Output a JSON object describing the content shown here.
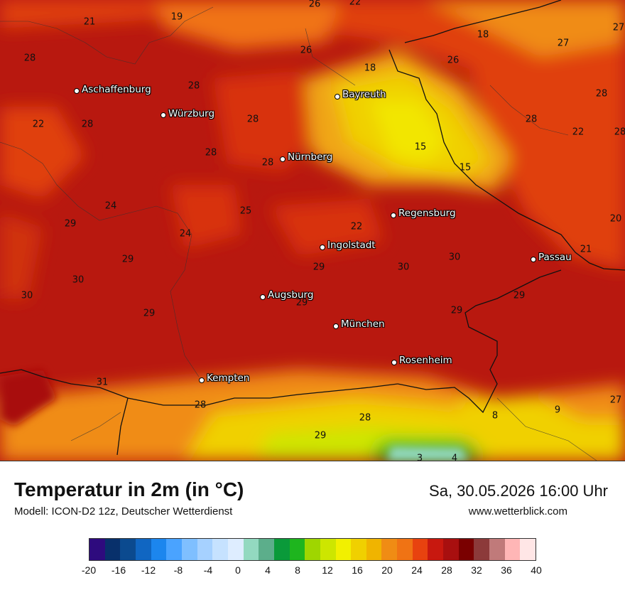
{
  "map": {
    "values": [
      {
        "t": "26"
      },
      {
        "t": "22"
      },
      {
        "t": "21"
      },
      {
        "t": "19"
      },
      {
        "t": "18"
      },
      {
        "t": "27"
      },
      {
        "t": "28"
      },
      {
        "t": "26"
      },
      {
        "t": "27"
      },
      {
        "t": "18"
      },
      {
        "t": "26"
      },
      {
        "t": "28"
      },
      {
        "t": "28"
      },
      {
        "t": "28"
      },
      {
        "t": "28"
      },
      {
        "t": "22"
      },
      {
        "t": "28"
      },
      {
        "t": "28"
      },
      {
        "t": "22"
      },
      {
        "t": "28"
      },
      {
        "t": "15"
      },
      {
        "t": "28"
      },
      {
        "t": "28"
      },
      {
        "t": "15"
      },
      {
        "t": "24"
      },
      {
        "t": "25"
      },
      {
        "t": "20"
      },
      {
        "t": "29"
      },
      {
        "t": "24"
      },
      {
        "t": "22"
      },
      {
        "t": "21"
      },
      {
        "t": "29"
      },
      {
        "t": "30"
      },
      {
        "t": "29"
      },
      {
        "t": "30"
      },
      {
        "t": "30"
      },
      {
        "t": "30"
      },
      {
        "t": "29"
      },
      {
        "t": "29"
      },
      {
        "t": "29"
      },
      {
        "t": "29"
      },
      {
        "t": "31"
      },
      {
        "t": "28"
      },
      {
        "t": "8"
      },
      {
        "t": "9"
      },
      {
        "t": "27"
      },
      {
        "t": "28"
      },
      {
        "t": "29"
      },
      {
        "t": "3"
      },
      {
        "t": "4"
      }
    ],
    "cities": [
      {
        "name": "Aschaffenburg"
      },
      {
        "name": "Würzburg"
      },
      {
        "name": "Bayreuth"
      },
      {
        "name": "Nürnberg"
      },
      {
        "name": "Regensburg"
      },
      {
        "name": "Ingolstadt"
      },
      {
        "name": "Passau"
      },
      {
        "name": "Augsburg"
      },
      {
        "name": "München"
      },
      {
        "name": "Rosenheim"
      },
      {
        "name": "Kempten"
      }
    ]
  },
  "header": {
    "title": "Temperatur in 2m (in °C)",
    "model": "Modell: ICON-D2 12z, Deutscher Wetterdienst",
    "datetime": "Sa, 30.05.2026 16:00 Uhr",
    "website": "www.wetterblick.com"
  },
  "legend": {
    "colors": [
      "#2e0b7e",
      "#08306b",
      "#0b4a8f",
      "#1066c2",
      "#1c86ee",
      "#4aa3ff",
      "#7fbfff",
      "#a6d1ff",
      "#c6e2ff",
      "#deedff",
      "#93d9c0",
      "#5cae8b",
      "#0a9a3a",
      "#1eb51e",
      "#9fd600",
      "#cde600",
      "#f2f000",
      "#f0d000",
      "#f0b400",
      "#f08c14",
      "#f07314",
      "#e8420f",
      "#c8180f",
      "#a80f0f",
      "#7a0000",
      "#8c3a3a",
      "#c07a7a",
      "#ffb6b6",
      "#ffe6e6"
    ],
    "ticks": [
      "-20",
      "-16",
      "-12",
      "-8",
      "-4",
      "0",
      "4",
      "8",
      "12",
      "16",
      "20",
      "24",
      "28",
      "32",
      "36",
      "40"
    ]
  }
}
